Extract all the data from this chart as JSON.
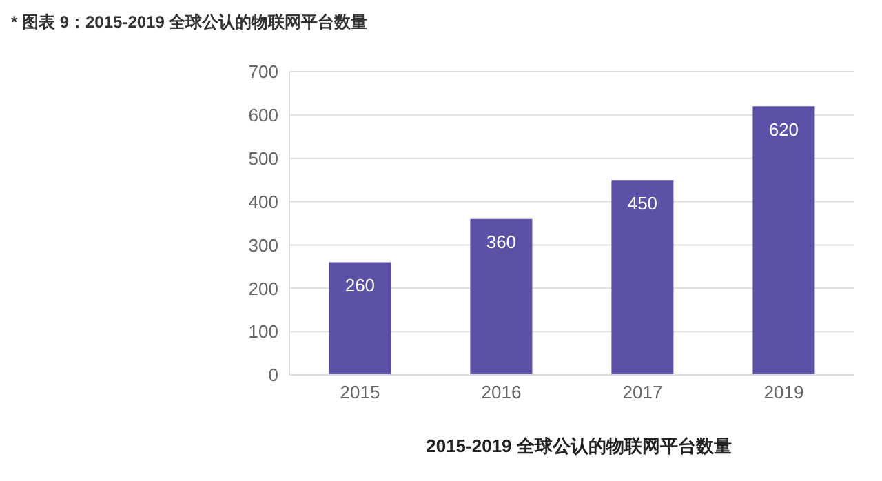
{
  "chart_data": {
    "type": "bar",
    "title": "* 图表 9：2015-2019 全球公认的物联网平台数量",
    "xlabel": "2015-2019 全球公认的物联网平台数量",
    "categories": [
      "2015",
      "2016",
      "2017",
      "2019"
    ],
    "values": [
      260,
      360,
      450,
      620
    ],
    "color": "#5b52a8",
    "ylim": [
      0,
      700
    ],
    "yticks": [
      0,
      100,
      200,
      300,
      400,
      500,
      600,
      700
    ],
    "grid": "y",
    "data_labels": true
  }
}
